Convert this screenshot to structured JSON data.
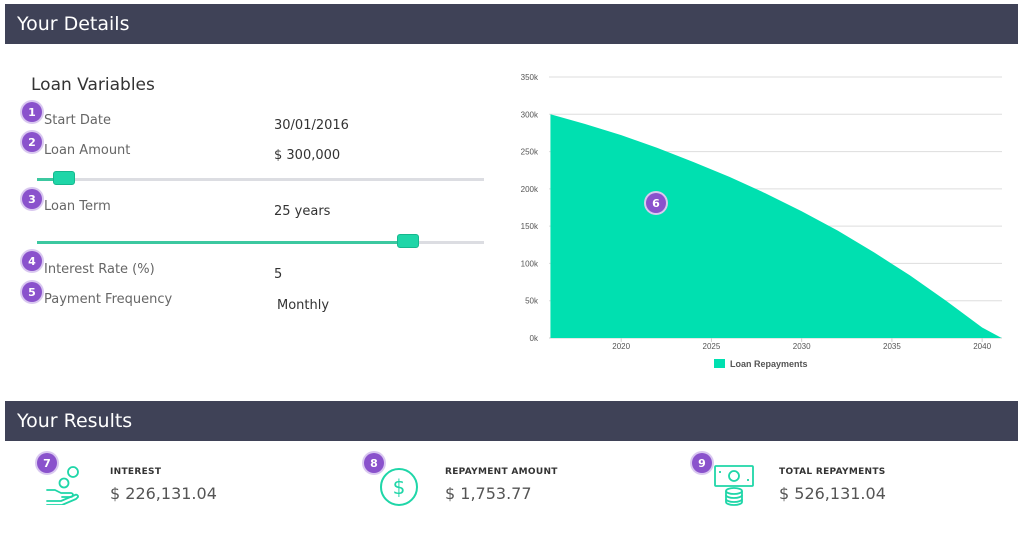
{
  "details": {
    "title": "Your Details"
  },
  "loan_variables": {
    "title": "Loan Variables",
    "fields": [
      {
        "label": "Start Date",
        "value": "30/01/2016",
        "badge": "1"
      },
      {
        "label": "Loan Amount",
        "value": "$ 300,000",
        "badge": "2"
      },
      {
        "label": "Loan Term",
        "value": "25 years",
        "badge": "3"
      },
      {
        "label": "Interest Rate (%)",
        "value": "5",
        "badge": "4"
      },
      {
        "label": "Payment Frequency",
        "value": "Monthly",
        "badge": "5"
      }
    ],
    "loan_amount_slider_fraction": 0.06,
    "loan_term_slider_fraction": 0.83
  },
  "chart": {
    "badge": "6"
  },
  "chart_data": {
    "type": "area",
    "title": "",
    "xlabel": "",
    "ylabel": "",
    "x_ticks": [
      "2020",
      "2025",
      "2030",
      "2035",
      "2040"
    ],
    "y_ticks": [
      "0k",
      "50k",
      "100k",
      "150k",
      "200k",
      "250k",
      "300k",
      "350k"
    ],
    "xlim": [
      2016,
      2041.1
    ],
    "ylim": [
      0,
      350000
    ],
    "grid": true,
    "legend_position": "bottom",
    "series": [
      {
        "name": "Loan Repayments",
        "color": "#00e0b0",
        "x": [
          2016.08,
          2018,
          2020,
          2022,
          2024,
          2026,
          2028,
          2030,
          2032,
          2034,
          2036,
          2038,
          2040,
          2041.08
        ],
        "y": [
          300000,
          287000,
          272000,
          255000,
          236000,
          216000,
          194000,
          170000,
          144000,
          115000,
          84000,
          50000,
          14000,
          0
        ]
      }
    ]
  },
  "results": {
    "title": "Your Results",
    "items": [
      {
        "label": "INTEREST",
        "value": "$ 226,131.04",
        "badge": "7",
        "icon": "hand-coins-icon"
      },
      {
        "label": "REPAYMENT AMOUNT",
        "value": "$ 1,753.77",
        "badge": "8",
        "icon": "dollar-circle-icon"
      },
      {
        "label": "TOTAL REPAYMENTS",
        "value": "$ 526,131.04",
        "badge": "9",
        "icon": "cash-stack-icon"
      }
    ]
  },
  "colors": {
    "header_bg": "#3f4257",
    "accent": "#1fd6a8",
    "badge": "#8a52cc"
  }
}
